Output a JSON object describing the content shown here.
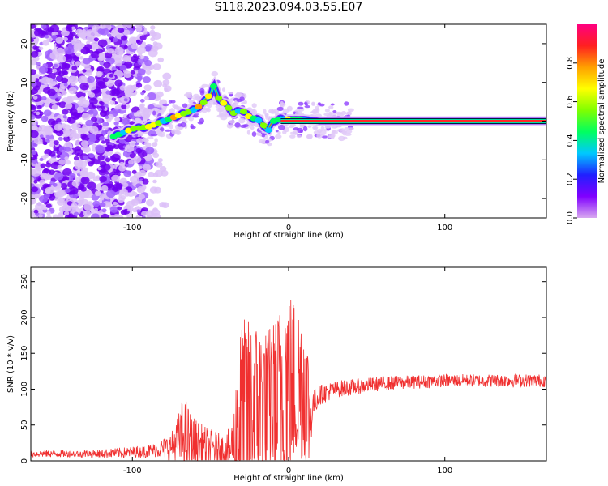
{
  "title": "S118.2023.094.03.55.E07",
  "colorbar": {
    "label": "Normalized spectral amplitude",
    "range": [
      0,
      1
    ],
    "ticks": [
      "0.0",
      "0.2",
      "0.4",
      "0.6",
      "0.8"
    ],
    "colormap": [
      "#d8a8f0",
      "#8000ff",
      "#2020ff",
      "#00c8ff",
      "#00ff60",
      "#80ff00",
      "#ffff00",
      "#ffa000",
      "#ff2020",
      "#ff0080"
    ]
  },
  "chart_data": [
    {
      "type": "heatmap",
      "name": "spectrogram",
      "xlabel": "Height of straight line (km)",
      "ylabel": "Frequency (Hz)",
      "xlim": [
        -165,
        165
      ],
      "ylim": [
        -25,
        25
      ],
      "xticks": [
        -100,
        0,
        100
      ],
      "xtick_labels": [
        "-100",
        "0",
        "100"
      ],
      "yticks": [
        -20,
        -10,
        0,
        10,
        20
      ],
      "ytick_labels": [
        "-20",
        "-10",
        "0",
        "10",
        "20"
      ],
      "noise_region_x": [
        -165,
        -85
      ],
      "ridge": {
        "x": [
          -112,
          -100,
          -90,
          -80,
          -70,
          -60,
          -55,
          -50,
          -48,
          -45,
          -40,
          -35,
          -30,
          -25,
          -20,
          -15,
          -13,
          -10,
          -5,
          0,
          5,
          10,
          20,
          30,
          50,
          100,
          150,
          165
        ],
        "y": [
          -4,
          -2,
          -1.5,
          0,
          1.5,
          3,
          4.5,
          7,
          9,
          6,
          4,
          2,
          3,
          1,
          0.5,
          -1.5,
          -2.5,
          0,
          0.5,
          0.5,
          0.5,
          0.5,
          0,
          0,
          0,
          0,
          0,
          0
        ]
      }
    },
    {
      "type": "line",
      "name": "snr",
      "xlabel": "Height of straight line (km)",
      "ylabel": "SNR (10 * v/v)",
      "xlim": [
        -165,
        165
      ],
      "ylim": [
        0,
        270
      ],
      "xticks": [
        -100,
        0,
        100
      ],
      "xtick_labels": [
        "-100",
        "0",
        "100"
      ],
      "yticks": [
        0,
        50,
        100,
        150,
        200,
        250
      ],
      "ytick_labels": [
        "0",
        "50",
        "100",
        "150",
        "200",
        "250"
      ],
      "color": "#f03030",
      "envelope": {
        "x": [
          -165,
          -140,
          -120,
          -100,
          -85,
          -75,
          -70,
          -67,
          -62,
          -55,
          -48,
          -40,
          -35,
          -32,
          -28,
          -22,
          -15,
          -8,
          -3,
          0,
          5,
          10,
          13,
          14,
          16,
          20,
          30,
          60,
          100,
          140,
          165
        ],
        "base": [
          10,
          10,
          10,
          12,
          15,
          20,
          30,
          35,
          25,
          20,
          18,
          15,
          20,
          60,
          70,
          75,
          80,
          90,
          100,
          110,
          110,
          100,
          70,
          60,
          80,
          92,
          100,
          108,
          112,
          112,
          112
        ],
        "amp": [
          5,
          5,
          6,
          8,
          10,
          20,
          40,
          60,
          40,
          30,
          25,
          20,
          50,
          120,
          130,
          120,
          100,
          110,
          130,
          130,
          110,
          100,
          80,
          40,
          20,
          14,
          12,
          10,
          9,
          9,
          9
        ]
      }
    }
  ]
}
